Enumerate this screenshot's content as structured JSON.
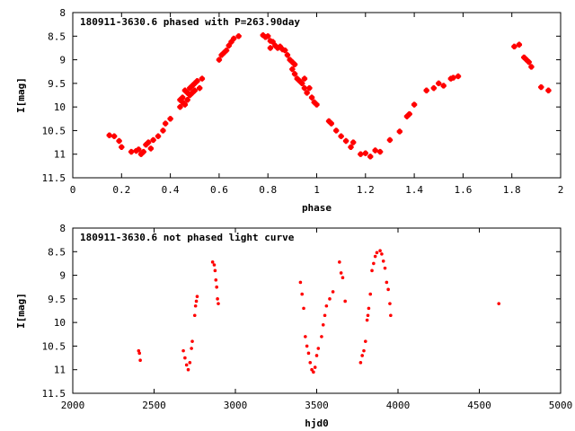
{
  "colors": {
    "points": "#ff0000",
    "frame": "#000000",
    "background": "#ffffff"
  },
  "chart_data": [
    {
      "type": "scatter",
      "title": "180911-3630.6 phased with P=263.90day",
      "xlabel": "phase",
      "ylabel": "I[mag]",
      "xlim": [
        0,
        2
      ],
      "ylim": [
        11.5,
        8
      ],
      "y_inverted": true,
      "grid": false,
      "marker": "plus",
      "x_ticks": [
        "0",
        "0.2",
        "0.4",
        "0.6",
        "0.8",
        "1",
        "1.2",
        "1.4",
        "1.6",
        "1.8",
        "2"
      ],
      "y_ticks": [
        "8",
        "8.5",
        "9",
        "9.5",
        "10",
        "10.5",
        "11",
        "11.5"
      ],
      "series": [
        {
          "points": [
            [
              0.15,
              10.6
            ],
            [
              0.17,
              10.62
            ],
            [
              0.19,
              10.72
            ],
            [
              0.2,
              10.85
            ],
            [
              0.24,
              10.95
            ],
            [
              0.26,
              10.93
            ],
            [
              0.27,
              10.9
            ],
            [
              0.28,
              11.0
            ],
            [
              0.29,
              10.95
            ],
            [
              0.3,
              10.8
            ],
            [
              0.31,
              10.75
            ],
            [
              0.32,
              10.88
            ],
            [
              0.33,
              10.7
            ],
            [
              0.35,
              10.62
            ],
            [
              0.37,
              10.5
            ],
            [
              0.38,
              10.35
            ],
            [
              0.4,
              10.25
            ],
            [
              0.44,
              10.0
            ],
            [
              0.44,
              9.85
            ],
            [
              0.45,
              9.8
            ],
            [
              0.45,
              9.9
            ],
            [
              0.46,
              9.65
            ],
            [
              0.46,
              9.95
            ],
            [
              0.47,
              9.7
            ],
            [
              0.47,
              9.85
            ],
            [
              0.48,
              9.6
            ],
            [
              0.48,
              9.75
            ],
            [
              0.49,
              9.55
            ],
            [
              0.49,
              9.7
            ],
            [
              0.5,
              9.5
            ],
            [
              0.5,
              9.65
            ],
            [
              0.51,
              9.45
            ],
            [
              0.52,
              9.6
            ],
            [
              0.53,
              9.4
            ],
            [
              0.6,
              9.0
            ],
            [
              0.61,
              8.9
            ],
            [
              0.62,
              8.85
            ],
            [
              0.63,
              8.8
            ],
            [
              0.64,
              8.7
            ],
            [
              0.65,
              8.62
            ],
            [
              0.66,
              8.55
            ],
            [
              0.68,
              8.5
            ],
            [
              0.78,
              8.48
            ],
            [
              0.79,
              8.52
            ],
            [
              0.8,
              8.5
            ],
            [
              0.81,
              8.6
            ],
            [
              0.81,
              8.75
            ],
            [
              0.82,
              8.62
            ],
            [
              0.83,
              8.7
            ],
            [
              0.84,
              8.75
            ],
            [
              0.85,
              8.72
            ],
            [
              0.86,
              8.78
            ],
            [
              0.87,
              8.8
            ],
            [
              0.88,
              8.9
            ],
            [
              0.89,
              9.0
            ],
            [
              0.9,
              9.05
            ],
            [
              0.91,
              9.1
            ],
            [
              0.9,
              9.2
            ],
            [
              0.91,
              9.3
            ],
            [
              0.92,
              9.4
            ],
            [
              0.93,
              9.45
            ],
            [
              0.94,
              9.5
            ],
            [
              0.95,
              9.6
            ],
            [
              0.96,
              9.7
            ],
            [
              0.95,
              9.4
            ],
            [
              0.97,
              9.6
            ],
            [
              0.98,
              9.8
            ],
            [
              0.99,
              9.9
            ],
            [
              1.0,
              9.95
            ],
            [
              1.05,
              10.3
            ],
            [
              1.06,
              10.35
            ],
            [
              1.08,
              10.5
            ],
            [
              1.1,
              10.62
            ],
            [
              1.12,
              10.72
            ],
            [
              1.14,
              10.85
            ],
            [
              1.15,
              10.75
            ],
            [
              1.18,
              11.0
            ],
            [
              1.2,
              10.98
            ],
            [
              1.22,
              11.05
            ],
            [
              1.24,
              10.92
            ],
            [
              1.26,
              10.95
            ],
            [
              1.3,
              10.7
            ],
            [
              1.34,
              10.52
            ],
            [
              1.37,
              10.2
            ],
            [
              1.38,
              10.15
            ],
            [
              1.4,
              9.95
            ],
            [
              1.45,
              9.65
            ],
            [
              1.48,
              9.6
            ],
            [
              1.5,
              9.5
            ],
            [
              1.52,
              9.55
            ],
            [
              1.55,
              9.4
            ],
            [
              1.56,
              9.38
            ],
            [
              1.58,
              9.35
            ],
            [
              1.81,
              8.72
            ],
            [
              1.83,
              8.68
            ],
            [
              1.85,
              8.95
            ],
            [
              1.86,
              9.0
            ],
            [
              1.87,
              9.05
            ],
            [
              1.88,
              9.15
            ],
            [
              1.92,
              9.58
            ],
            [
              1.95,
              9.65
            ]
          ]
        }
      ]
    },
    {
      "type": "scatter",
      "title": "180911-3630.6 not phased light curve",
      "xlabel": "hjd0",
      "ylabel": "I[mag]",
      "xlim": [
        2000,
        5000
      ],
      "ylim": [
        11.5,
        8
      ],
      "y_inverted": true,
      "grid": false,
      "marker": "dot",
      "x_ticks": [
        "2000",
        "2500",
        "3000",
        "3500",
        "4000",
        "4500",
        "5000"
      ],
      "y_ticks": [
        "8",
        "8.5",
        "9",
        "9.5",
        "10",
        "10.5",
        "11",
        "11.5"
      ],
      "series": [
        {
          "points": [
            [
              2405,
              10.6
            ],
            [
              2410,
              10.65
            ],
            [
              2415,
              10.8
            ],
            [
              2680,
              10.6
            ],
            [
              2690,
              10.75
            ],
            [
              2700,
              10.9
            ],
            [
              2710,
              11.0
            ],
            [
              2720,
              10.85
            ],
            [
              2730,
              10.55
            ],
            [
              2735,
              10.4
            ],
            [
              2750,
              9.85
            ],
            [
              2755,
              9.65
            ],
            [
              2760,
              9.55
            ],
            [
              2765,
              9.45
            ],
            [
              2860,
              8.72
            ],
            [
              2870,
              8.78
            ],
            [
              2875,
              8.9
            ],
            [
              2880,
              9.1
            ],
            [
              2885,
              9.25
            ],
            [
              2890,
              9.5
            ],
            [
              2895,
              9.6
            ],
            [
              3400,
              9.15
            ],
            [
              3410,
              9.4
            ],
            [
              3420,
              9.7
            ],
            [
              3430,
              10.3
            ],
            [
              3440,
              10.5
            ],
            [
              3450,
              10.65
            ],
            [
              3460,
              10.85
            ],
            [
              3470,
              11.0
            ],
            [
              3480,
              11.05
            ],
            [
              3490,
              10.95
            ],
            [
              3500,
              10.7
            ],
            [
              3510,
              10.55
            ],
            [
              3530,
              10.3
            ],
            [
              3540,
              10.05
            ],
            [
              3550,
              9.85
            ],
            [
              3560,
              9.65
            ],
            [
              3580,
              9.5
            ],
            [
              3600,
              9.35
            ],
            [
              3640,
              8.72
            ],
            [
              3650,
              8.95
            ],
            [
              3660,
              9.05
            ],
            [
              3675,
              9.55
            ],
            [
              3770,
              10.85
            ],
            [
              3780,
              10.7
            ],
            [
              3790,
              10.6
            ],
            [
              3800,
              10.4
            ],
            [
              3810,
              9.95
            ],
            [
              3815,
              9.85
            ],
            [
              3820,
              9.7
            ],
            [
              3830,
              9.4
            ],
            [
              3840,
              8.9
            ],
            [
              3850,
              8.75
            ],
            [
              3860,
              8.6
            ],
            [
              3870,
              8.52
            ],
            [
              3890,
              8.48
            ],
            [
              3900,
              8.55
            ],
            [
              3910,
              8.7
            ],
            [
              3920,
              8.85
            ],
            [
              3930,
              9.15
            ],
            [
              3940,
              9.3
            ],
            [
              3950,
              9.6
            ],
            [
              3955,
              9.85
            ],
            [
              4620,
              9.6
            ]
          ]
        }
      ]
    }
  ]
}
